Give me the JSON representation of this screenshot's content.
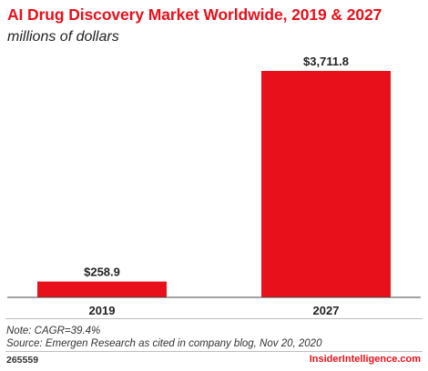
{
  "title": "AI Drug Discovery Market Worldwide, 2019 & 2027",
  "subtitle": "millions of dollars",
  "chart_data": {
    "type": "bar",
    "categories": [
      "2019",
      "2027"
    ],
    "values": [
      258.9,
      3711.8
    ],
    "value_labels": [
      "$258.9",
      "$3,711.8"
    ],
    "bar_color": "#e8101a",
    "grid": false,
    "legend": "none"
  },
  "note": "Note: CAGR=39.4%",
  "source": "Source: Emergen Research as cited in company blog, Nov 20, 2020",
  "chart_id": "265559",
  "brand": "InsiderIntelligence.com"
}
